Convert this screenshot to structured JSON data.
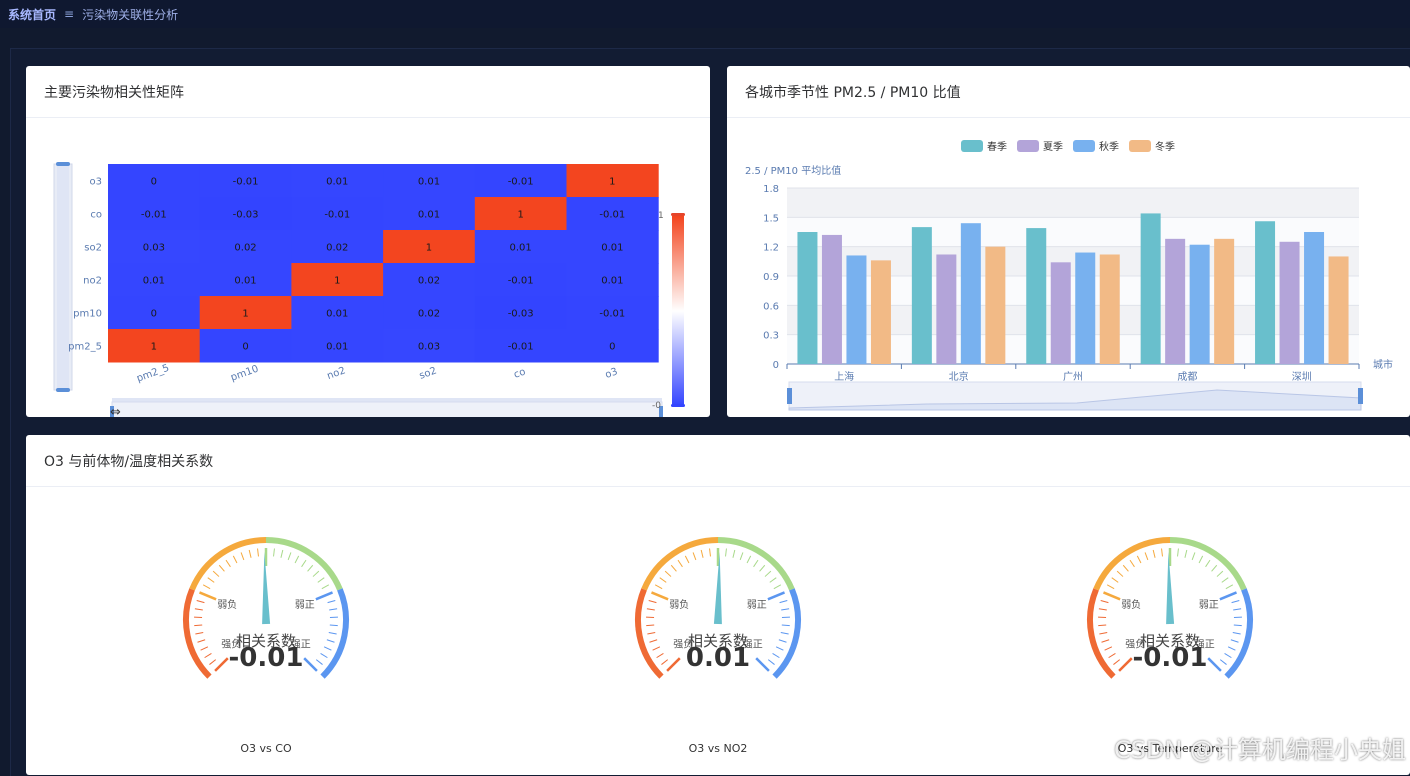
{
  "topbar": {
    "home": "系统首页",
    "sep_icon": "≡",
    "crumb": "污染物关联性分析"
  },
  "cards": {
    "heatmap_title": "主要污染物相关性矩阵",
    "bar_title": "各城市季节性 PM2.5 / PM10 比值",
    "gauge_title": "O3 与前体物/温度相关系数"
  },
  "chart_data": [
    {
      "type": "heatmap",
      "x_categories": [
        "pm2_5",
        "pm10",
        "no2",
        "so2",
        "co",
        "o3"
      ],
      "y_categories": [
        "o3",
        "co",
        "so2",
        "no2",
        "pm10",
        "pm2_5"
      ],
      "rows": [
        [
          "0",
          "-0.01",
          "0.01",
          "0.01",
          "-0.01",
          "1"
        ],
        [
          "-0.01",
          "-0.03",
          "-0.01",
          "0.01",
          "1",
          "-0.01"
        ],
        [
          "0.03",
          "0.02",
          "0.02",
          "1",
          "0.01",
          "0.01"
        ],
        [
          "0.01",
          "0.01",
          "1",
          "0.02",
          "-0.01",
          "0.01"
        ],
        [
          "0",
          "1",
          "0.01",
          "0.02",
          "-0.03",
          "-0.01"
        ],
        [
          "1",
          "0",
          "0.01",
          "0.03",
          "-0.01",
          "0"
        ]
      ],
      "visual_map": {
        "max_label": "1",
        "min_label": "-0",
        "colors": [
          "#3344ff",
          "#ffffff",
          "#f3451f"
        ]
      }
    },
    {
      "type": "bar",
      "categories": [
        "上海",
        "北京",
        "广州",
        "成都",
        "深圳"
      ],
      "series": [
        {
          "name": "春季",
          "color": "#69bfcc",
          "values": [
            1.35,
            1.4,
            1.39,
            1.54,
            1.46
          ]
        },
        {
          "name": "夏季",
          "color": "#b3a4d9",
          "values": [
            1.32,
            1.12,
            1.04,
            1.28,
            1.25
          ]
        },
        {
          "name": "秋季",
          "color": "#78b1ef",
          "values": [
            1.11,
            1.44,
            1.14,
            1.22,
            1.35
          ]
        },
        {
          "name": "冬季",
          "color": "#f2ba86",
          "values": [
            1.06,
            1.2,
            1.12,
            1.28,
            1.1
          ]
        }
      ],
      "ylabel": "2.5 / PM10 平均比值",
      "xlabel": "城市",
      "ylim": [
        0,
        1.8
      ],
      "y_ticks": [
        "0",
        "0.3",
        "0.6",
        "0.9",
        "1.2",
        "1.5",
        "1.8"
      ],
      "grid": true,
      "legend": "top-center"
    },
    {
      "type": "gauge",
      "gauges": [
        {
          "value": -0.01,
          "value_label": "-0.01",
          "title": "相关系数",
          "caption": "O3 vs CO"
        },
        {
          "value": 0.01,
          "value_label": "0.01",
          "title": "相关系数",
          "caption": "O3 vs NO2"
        },
        {
          "value": -0.01,
          "value_label": "-0.01",
          "title": "相关系数",
          "caption": "O3 vs Temperature"
        }
      ],
      "labels": {
        "weak_neg": "弱负",
        "weak_pos": "弱正",
        "strong_neg": "强负",
        "strong_pos": "强正"
      },
      "colors": [
        "#ef6a34",
        "#f5a93d",
        "#a8d98a",
        "#5b96f0"
      ]
    }
  ],
  "watermark": "CSDN @计算机编程小央姐"
}
